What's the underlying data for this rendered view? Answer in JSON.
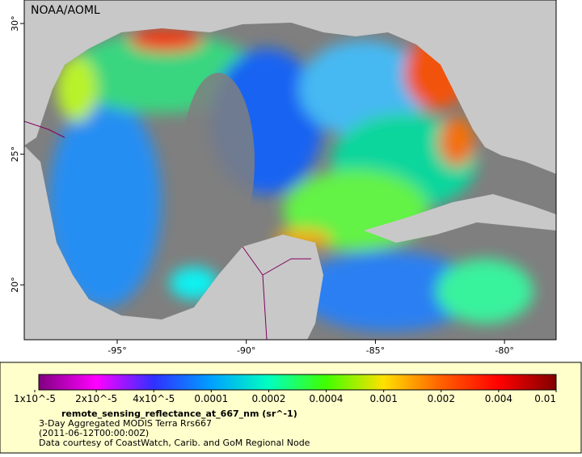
{
  "map": {
    "credit": "NOAA/AOML",
    "lon_lim": [
      -98.6,
      -78
    ],
    "lat_lim": [
      17.9,
      30.9
    ],
    "lon_ticks": [
      {
        "value": -95,
        "label": "-95°"
      },
      {
        "value": -90,
        "label": "-90°"
      },
      {
        "value": -85,
        "label": "-85°"
      },
      {
        "value": -80,
        "label": "-80°"
      }
    ],
    "lat_ticks": [
      {
        "value": 30,
        "label": "30°"
      },
      {
        "value": 25,
        "label": "25°"
      },
      {
        "value": 20,
        "label": "20°"
      }
    ],
    "colorbar": {
      "colors": [
        "#800080",
        "#ff00ff",
        "#3030ff",
        "#00a0ff",
        "#00ffc0",
        "#40ff00",
        "#ffe000",
        "#ff6000",
        "#ff0000",
        "#800000"
      ],
      "ticks": [
        {
          "value": 1e-05,
          "label": "1x10^-5"
        },
        {
          "value": 2e-05,
          "label": "2x10^-5"
        },
        {
          "value": 4e-05,
          "label": "4x10^-5"
        },
        {
          "value": 0.0001,
          "label": "0.0001"
        },
        {
          "value": 0.0002,
          "label": "0.0002"
        },
        {
          "value": 0.0004,
          "label": "0.0004"
        },
        {
          "value": 0.001,
          "label": "0.001"
        },
        {
          "value": 0.002,
          "label": "0.002"
        },
        {
          "value": 0.004,
          "label": "0.004"
        },
        {
          "value": 0.01,
          "label": "0.01"
        }
      ]
    },
    "variable": "remote_sensing_reflectance_at_667_nm (sr^-1)",
    "lines": [
      "3-Day Aggregated MODIS Terra Rrs667",
      "(2011-06-12T00:00:00Z)",
      "Data courtesy of CoastWatch, Carib. and GoM Regional Node"
    ]
  }
}
